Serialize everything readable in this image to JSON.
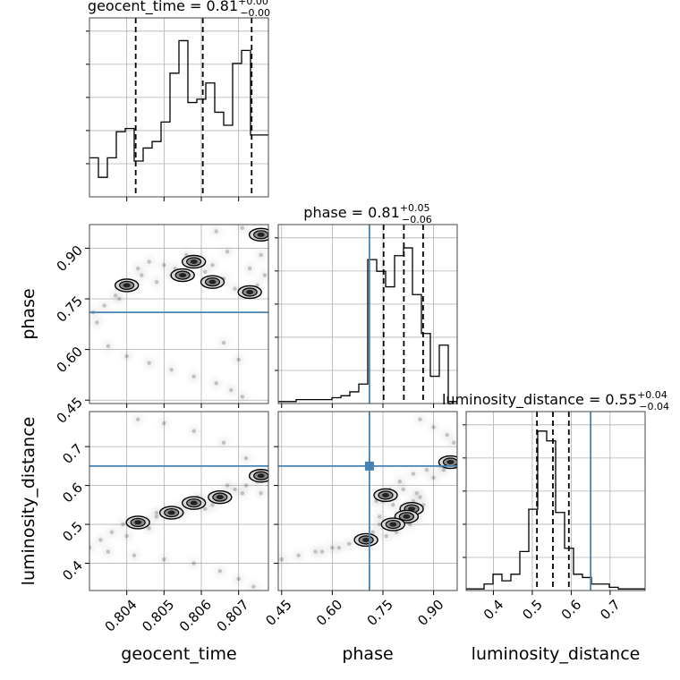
{
  "chart_data": {
    "type": "corner",
    "parameters": [
      "geocent_time",
      "phase",
      "luminosity_distance"
    ],
    "axis_labels": [
      "geocent_time",
      "phase",
      "luminosity_distance"
    ],
    "ranges": [
      [
        0.803,
        0.8078
      ],
      [
        0.44,
        0.97
      ],
      [
        0.33,
        0.79
      ]
    ],
    "ticks": [
      {
        "values": [
          0.804,
          0.805,
          0.806,
          0.807
        ],
        "labels": [
          "0.804",
          "0.805",
          "0.806",
          "0.807"
        ]
      },
      {
        "values": [
          0.45,
          0.6,
          0.75,
          0.9
        ],
        "labels": [
          "0.45",
          "0.60",
          "0.75",
          "0.90"
        ]
      },
      {
        "values": [
          0.4,
          0.5,
          0.6,
          0.7
        ],
        "labels": [
          "0.4",
          "0.5",
          "0.6",
          "0.7"
        ]
      }
    ],
    "truths": [
      null,
      0.71,
      0.65
    ],
    "grid": true,
    "titles": [
      {
        "text": "geocent_time = 0.81",
        "plus": "+0.00",
        "minus": "−0.00"
      },
      {
        "text": "phase = 0.81",
        "plus": "+0.05",
        "minus": "−0.06"
      },
      {
        "text": "luminosity_distance = 0.55",
        "plus": "+0.04",
        "minus": "−0.04"
      }
    ],
    "histograms": [
      {
        "parameter": "geocent_time",
        "bin_edges": [
          0.803,
          0.80324,
          0.80348,
          0.80372,
          0.80396,
          0.8042,
          0.80444,
          0.80468,
          0.80492,
          0.80516,
          0.8054,
          0.80564,
          0.80588,
          0.80612,
          0.80636,
          0.8066,
          0.80684,
          0.80708,
          0.80732,
          0.80756,
          0.8078
        ],
        "counts": [
          12,
          6,
          12,
          20,
          21,
          11,
          15,
          17,
          23,
          38,
          48,
          29,
          30,
          35,
          26,
          22,
          41,
          45,
          19,
          19
        ],
        "ymax": 55,
        "quantiles": [
          0.80424,
          0.80604,
          0.80735
        ]
      },
      {
        "parameter": "phase",
        "bin_edges": [
          0.44,
          0.4665,
          0.493,
          0.5195,
          0.546,
          0.5725,
          0.599,
          0.6255,
          0.652,
          0.6785,
          0.705,
          0.7315,
          0.758,
          0.7845,
          0.811,
          0.8375,
          0.864,
          0.8905,
          0.917,
          0.9435,
          0.97
        ],
        "counts": [
          0.5,
          0.5,
          1,
          1,
          1,
          1,
          1.5,
          2,
          3,
          5,
          37,
          34,
          30,
          38,
          40,
          28,
          18,
          7,
          15,
          0.5
        ],
        "ymax": 46,
        "quantiles": [
          0.752,
          0.812,
          0.869
        ]
      },
      {
        "parameter": "luminosity_distance",
        "bin_edges": [
          0.33,
          0.353,
          0.376,
          0.399,
          0.422,
          0.445,
          0.468,
          0.491,
          0.514,
          0.537,
          0.56,
          0.583,
          0.606,
          0.629,
          0.652,
          0.675,
          0.698,
          0.721,
          0.744,
          0.767,
          0.79
        ],
        "counts": [
          0.5,
          0.5,
          2,
          5,
          3,
          5,
          12,
          25,
          49,
          46,
          24,
          13,
          5,
          4,
          2,
          2,
          1,
          0.5,
          0.5,
          0.5
        ],
        "ymax": 55,
        "quantiles": [
          0.512,
          0.553,
          0.594
        ]
      }
    ],
    "pairs": [
      {
        "x": "geocent_time",
        "y": "phase",
        "samples": [
          [
            0.8031,
            0.71
          ],
          [
            0.8034,
            0.73
          ],
          [
            0.8037,
            0.76
          ],
          [
            0.804,
            0.8
          ],
          [
            0.8043,
            0.84
          ],
          [
            0.8046,
            0.86
          ],
          [
            0.805,
            0.85
          ],
          [
            0.8053,
            0.84
          ],
          [
            0.8057,
            0.86
          ],
          [
            0.806,
            0.87
          ],
          [
            0.8063,
            0.85
          ],
          [
            0.8066,
            0.81
          ],
          [
            0.8069,
            0.78
          ],
          [
            0.8072,
            0.77
          ],
          [
            0.8075,
            0.79
          ],
          [
            0.8077,
            0.82
          ],
          [
            0.8064,
            0.95
          ],
          [
            0.8071,
            0.96
          ],
          [
            0.8074,
            0.94
          ],
          [
            0.8076,
            0.88
          ],
          [
            0.8035,
            0.61
          ],
          [
            0.804,
            0.58
          ],
          [
            0.8046,
            0.56
          ],
          [
            0.8052,
            0.54
          ],
          [
            0.8058,
            0.52
          ],
          [
            0.8064,
            0.5
          ],
          [
            0.8068,
            0.48
          ],
          [
            0.8071,
            0.46
          ],
          [
            0.8052,
            0.82
          ],
          [
            0.8048,
            0.8
          ],
          [
            0.8056,
            0.88
          ],
          [
            0.8061,
            0.83
          ],
          [
            0.8067,
            0.89
          ],
          [
            0.8042,
            0.78
          ],
          [
            0.807,
            0.57
          ],
          [
            0.8066,
            0.62
          ],
          [
            0.8038,
            0.75
          ],
          [
            0.8032,
            0.68
          ],
          [
            0.8044,
            0.82
          ],
          [
            0.8073,
            0.84
          ]
        ],
        "density_peaks": [
          [
            0.8058,
            0.86
          ],
          [
            0.8055,
            0.82
          ],
          [
            0.8073,
            0.77
          ],
          [
            0.8063,
            0.8
          ],
          [
            0.8076,
            0.94
          ],
          [
            0.804,
            0.79
          ]
        ]
      },
      {
        "x": "geocent_time",
        "y": "luminosity_distance",
        "samples": [
          [
            0.803,
            0.44
          ],
          [
            0.8033,
            0.46
          ],
          [
            0.8036,
            0.48
          ],
          [
            0.8039,
            0.5
          ],
          [
            0.8042,
            0.51
          ],
          [
            0.8045,
            0.51
          ],
          [
            0.8048,
            0.52
          ],
          [
            0.8051,
            0.53
          ],
          [
            0.8054,
            0.54
          ],
          [
            0.8057,
            0.55
          ],
          [
            0.806,
            0.56
          ],
          [
            0.8063,
            0.57
          ],
          [
            0.8066,
            0.58
          ],
          [
            0.8069,
            0.59
          ],
          [
            0.8072,
            0.6
          ],
          [
            0.8075,
            0.61
          ],
          [
            0.8077,
            0.63
          ],
          [
            0.8072,
            0.67
          ],
          [
            0.8066,
            0.71
          ],
          [
            0.8058,
            0.74
          ],
          [
            0.805,
            0.76
          ],
          [
            0.8043,
            0.77
          ],
          [
            0.8035,
            0.43
          ],
          [
            0.8042,
            0.42
          ],
          [
            0.805,
            0.41
          ],
          [
            0.8058,
            0.4
          ],
          [
            0.8065,
            0.38
          ],
          [
            0.807,
            0.36
          ],
          [
            0.8074,
            0.34
          ],
          [
            0.8055,
            0.53
          ],
          [
            0.8061,
            0.54
          ],
          [
            0.8067,
            0.6
          ],
          [
            0.8071,
            0.58
          ],
          [
            0.8046,
            0.49
          ],
          [
            0.804,
            0.47
          ],
          [
            0.8076,
            0.58
          ],
          [
            0.8063,
            0.55
          ],
          [
            0.8059,
            0.57
          ],
          [
            0.8053,
            0.54
          ],
          [
            0.8048,
            0.53
          ]
        ],
        "density_peaks": [
          [
            0.8058,
            0.555
          ],
          [
            0.8043,
            0.505
          ],
          [
            0.8065,
            0.57
          ],
          [
            0.8076,
            0.625
          ],
          [
            0.8052,
            0.53
          ]
        ]
      },
      {
        "x": "phase",
        "y": "luminosity_distance",
        "samples": [
          [
            0.45,
            0.41
          ],
          [
            0.5,
            0.42
          ],
          [
            0.55,
            0.43
          ],
          [
            0.6,
            0.44
          ],
          [
            0.65,
            0.45
          ],
          [
            0.69,
            0.46
          ],
          [
            0.72,
            0.48
          ],
          [
            0.74,
            0.52
          ],
          [
            0.75,
            0.56
          ],
          [
            0.77,
            0.59
          ],
          [
            0.8,
            0.61
          ],
          [
            0.84,
            0.63
          ],
          [
            0.88,
            0.64
          ],
          [
            0.92,
            0.65
          ],
          [
            0.95,
            0.67
          ],
          [
            0.96,
            0.71
          ],
          [
            0.94,
            0.73
          ],
          [
            0.9,
            0.75
          ],
          [
            0.86,
            0.77
          ],
          [
            0.78,
            0.5
          ],
          [
            0.8,
            0.52
          ],
          [
            0.82,
            0.54
          ],
          [
            0.84,
            0.56
          ],
          [
            0.86,
            0.57
          ],
          [
            0.83,
            0.5
          ],
          [
            0.79,
            0.48
          ],
          [
            0.76,
            0.47
          ],
          [
            0.73,
            0.56
          ],
          [
            0.77,
            0.57
          ],
          [
            0.85,
            0.52
          ],
          [
            0.87,
            0.55
          ],
          [
            0.81,
            0.59
          ],
          [
            0.7,
            0.45
          ],
          [
            0.74,
            0.5
          ],
          [
            0.9,
            0.62
          ],
          [
            0.93,
            0.64
          ],
          [
            0.62,
            0.44
          ],
          [
            0.57,
            0.43
          ],
          [
            0.85,
            0.58
          ],
          [
            0.78,
            0.55
          ]
        ],
        "density_peaks": [
          [
            0.758,
            0.575
          ],
          [
            0.835,
            0.54
          ],
          [
            0.82,
            0.52
          ],
          [
            0.95,
            0.66
          ],
          [
            0.7,
            0.46
          ],
          [
            0.78,
            0.5
          ]
        ]
      }
    ]
  }
}
